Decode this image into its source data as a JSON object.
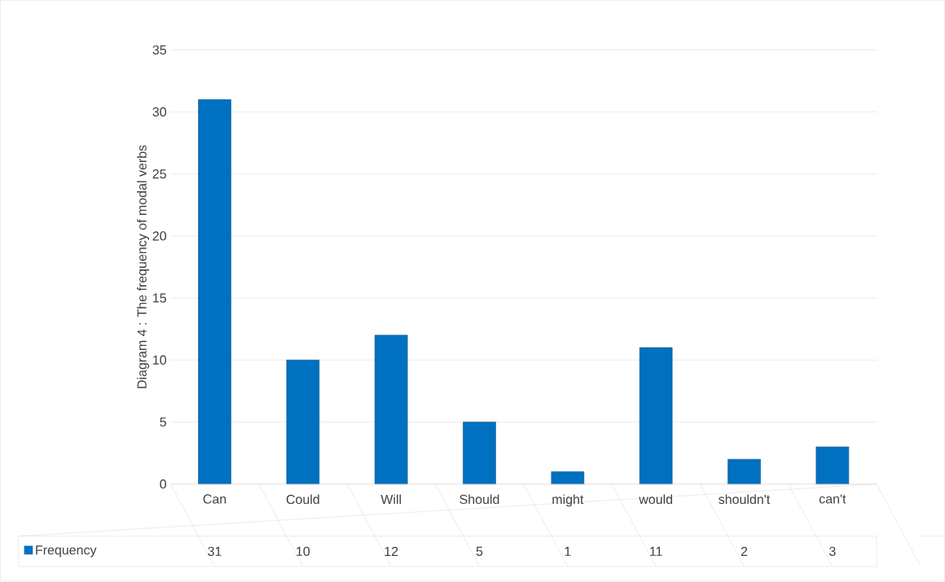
{
  "chart_data": {
    "type": "bar",
    "ylabel": "Diagram 4 : The frequency of modal verbs",
    "categories": [
      "Can",
      "Could",
      "Will",
      "Should",
      "might",
      "would",
      "shouldn't",
      "can't"
    ],
    "series": [
      {
        "name": "Frequency",
        "color": "#0070c0",
        "values": [
          31,
          10,
          12,
          5,
          1,
          11,
          2,
          3
        ]
      }
    ],
    "ylim": [
      0,
      35
    ],
    "yticks": [
      0,
      5,
      10,
      15,
      20,
      25,
      30,
      35
    ],
    "grid": "y",
    "legend": "bottom",
    "data_labels": true
  }
}
